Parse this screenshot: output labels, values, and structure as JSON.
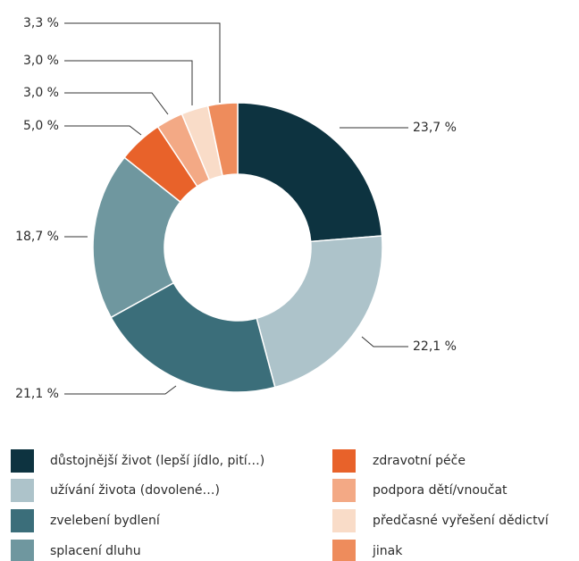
{
  "chart_data": {
    "type": "donut",
    "categories": [
      "důstojnější život (lepší jídlo, pití…)",
      "užívání života (dovolené…)",
      "zvelebení bydlení",
      "splacení dluhu",
      "zdravotní péče",
      "podpora dětí/vnoučat",
      "předčasné vyřešení dědictví",
      "jinak"
    ],
    "values": [
      23.7,
      22.1,
      21.1,
      18.7,
      5.0,
      3.0,
      3.0,
      3.3
    ],
    "value_labels": [
      "23,7 %",
      "22,1 %",
      "21,1 %",
      "18,7 %",
      "5,0 %",
      "3,0 %",
      "3,0 %",
      "3,3 %"
    ],
    "colors": [
      "#0d3340",
      "#adc3ca",
      "#3b6e7a",
      "#6f979f",
      "#e8622a",
      "#f3a985",
      "#f9dcc8",
      "#ee8c5c"
    ]
  }
}
